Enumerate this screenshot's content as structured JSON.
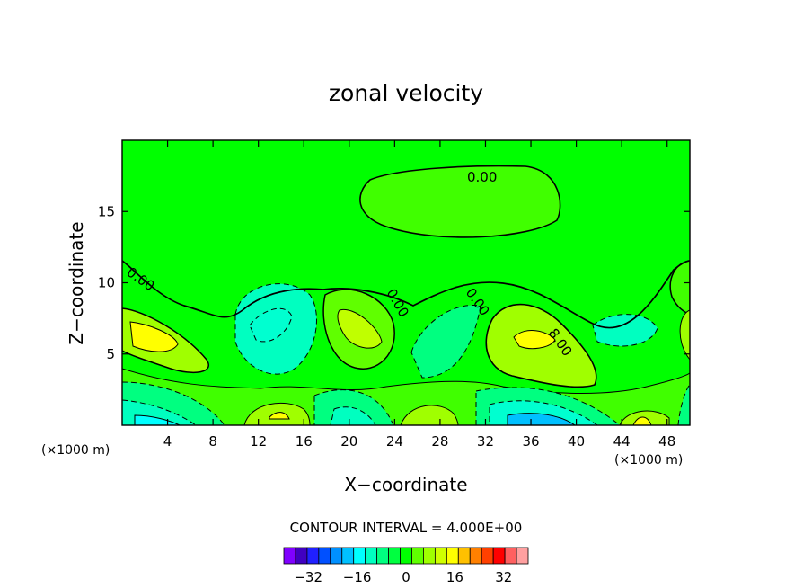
{
  "chart_data": {
    "type": "contour",
    "title": "zonal velocity",
    "xlabel": "X−coordinate",
    "ylabel": "Z−coordinate",
    "x_unit_label": "(×1000 m)",
    "z_unit_label": "(×1000 m)",
    "xlim": [
      0,
      50
    ],
    "ylim": [
      0,
      20
    ],
    "x_ticks": [
      4,
      8,
      12,
      16,
      20,
      24,
      28,
      32,
      36,
      40,
      44,
      48
    ],
    "y_ticks": [
      5,
      10,
      15
    ],
    "contour_interval_text": "CONTOUR INTERVAL = 4.000E+00",
    "contour_labels": [
      {
        "text": "0.00",
        "x": 32.5,
        "z": 17.4
      },
      {
        "text": "0.00",
        "x": 1.8,
        "z": 10.3
      },
      {
        "text": "0.00",
        "x": 24.6,
        "z": 8.6
      },
      {
        "text": "0.00",
        "x": 31.3,
        "z": 8.6
      },
      {
        "text": "8.00",
        "x": 38.6,
        "z": 5.9
      }
    ],
    "colorbar": {
      "levels": [
        -40,
        -36,
        -32,
        -28,
        -24,
        -20,
        -16,
        -12,
        -8,
        -4,
        0,
        4,
        8,
        12,
        16,
        20,
        24,
        28,
        32,
        36,
        40
      ],
      "colors": [
        "#8000ff",
        "#4000c0",
        "#2020ff",
        "#0050ff",
        "#0090ff",
        "#00c0ff",
        "#00ffff",
        "#00ffc0",
        "#00ff80",
        "#00ff40",
        "#00ff00",
        "#60ff00",
        "#a0ff00",
        "#d0ff00",
        "#ffff00",
        "#ffc000",
        "#ff8000",
        "#ff4000",
        "#ff0000",
        "#ff6060",
        "#ffa0a0"
      ],
      "tick_labels": [
        "−32",
        "−16",
        "0",
        "16",
        "32"
      ],
      "tick_values": [
        -32,
        -16,
        0,
        16,
        32
      ]
    }
  }
}
